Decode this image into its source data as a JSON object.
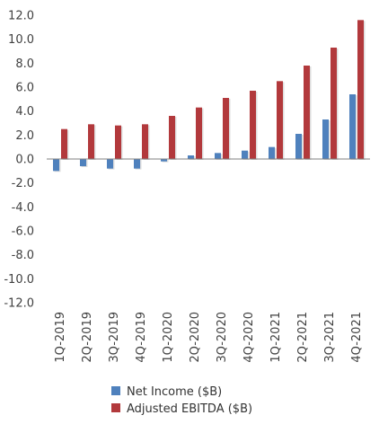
{
  "chart_data": {
    "type": "bar",
    "title": "",
    "xlabel": "",
    "ylabel": "",
    "categories": [
      "1Q-2019",
      "2Q-2019",
      "3Q-2019",
      "4Q-2019",
      "1Q-2020",
      "2Q-2020",
      "3Q-2020",
      "4Q-2020",
      "1Q-2021",
      "2Q-2021",
      "3Q-2021",
      "4Q-2021"
    ],
    "series": [
      {
        "name": "Net Income ($B)",
        "color": "#4f81bd",
        "values": [
          -1.0,
          -0.6,
          -0.8,
          -0.8,
          -0.2,
          0.3,
          0.5,
          0.7,
          1.0,
          2.1,
          3.3,
          5.4
        ]
      },
      {
        "name": "Adjusted EBITDA ($B)",
        "color": "#b2393c",
        "values": [
          2.5,
          2.9,
          2.8,
          2.9,
          3.6,
          4.3,
          5.1,
          5.7,
          6.5,
          7.8,
          9.3,
          11.6
        ]
      }
    ],
    "ylim": [
      -12.0,
      12.0
    ],
    "yticks": [
      "12.0",
      "10.0",
      "8.0",
      "6.0",
      "4.0",
      "2.0",
      "0.0",
      "-2.0",
      "-4.0",
      "-6.0",
      "-8.0",
      "-10.0",
      "-12.0"
    ],
    "grid": false,
    "legend_position": "bottom"
  }
}
